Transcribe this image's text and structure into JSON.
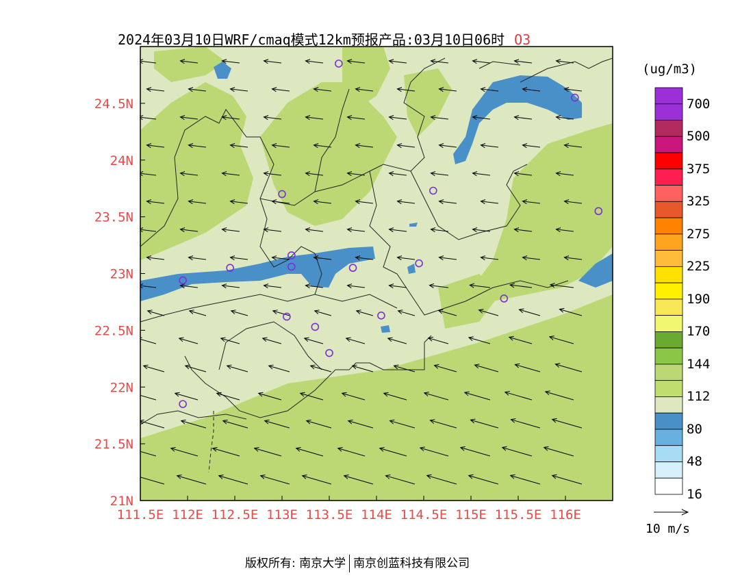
{
  "title": {
    "main": "2024年03月10日WRF/cmaq模式12km预报产品:03月10日06时",
    "pollutant": "O3"
  },
  "map": {
    "lon_ticks": [
      "111.5E",
      "112E",
      "112.5E",
      "113E",
      "113.5E",
      "114E",
      "114.5E",
      "115E",
      "115.5E",
      "116E"
    ],
    "lat_ticks": [
      "24.5N",
      "24N",
      "23.5N",
      "23N",
      "22.5N",
      "22N",
      "21.5N",
      "21N"
    ],
    "lon_range": [
      111.5,
      116.5
    ],
    "lat_range": [
      21,
      25
    ],
    "tick_color": "#e84a4a",
    "station_color": "#7b2fd6",
    "stations": [
      {
        "lon": 113.6,
        "lat": 24.85
      },
      {
        "lon": 116.1,
        "lat": 24.55
      },
      {
        "lon": 114.6,
        "lat": 23.73
      },
      {
        "lon": 113.0,
        "lat": 23.7
      },
      {
        "lon": 116.35,
        "lat": 23.55
      },
      {
        "lon": 113.1,
        "lat": 23.16
      },
      {
        "lon": 112.45,
        "lat": 23.05
      },
      {
        "lon": 113.1,
        "lat": 23.06
      },
      {
        "lon": 113.75,
        "lat": 23.05
      },
      {
        "lon": 114.45,
        "lat": 23.09
      },
      {
        "lon": 111.95,
        "lat": 22.94
      },
      {
        "lon": 115.35,
        "lat": 22.78
      },
      {
        "lon": 113.05,
        "lat": 22.62
      },
      {
        "lon": 114.05,
        "lat": 22.63
      },
      {
        "lon": 113.35,
        "lat": 22.53
      },
      {
        "lon": 113.5,
        "lat": 22.3
      },
      {
        "lon": 111.95,
        "lat": 21.85
      }
    ]
  },
  "colorbar": {
    "unit": "(ug/m3)",
    "labels": [
      "700",
      "500",
      "375",
      "325",
      "275",
      "225",
      "190",
      "170",
      "144",
      "112",
      "80",
      "48",
      "16"
    ],
    "colors": [
      "#9b30d8",
      "#9b30d8",
      "#b22a5e",
      "#c8167a",
      "#ff0000",
      "#ff1e50",
      "#ff6060",
      "#e8582a",
      "#ff8200",
      "#ffa41e",
      "#ffbc3a",
      "#ffe100",
      "#fff000",
      "#f8e858",
      "#f0f870",
      "#6aaa30",
      "#8cc646",
      "#bcd874",
      "#c0de70",
      "#dde8c0",
      "#4a90c8",
      "#68b0e0",
      "#a8dcf4",
      "#d8f0fb",
      "#ffffff"
    ]
  },
  "vector_key": {
    "label": "10 m/s"
  },
  "footer": {
    "left": "版权所有: 南京大学",
    "right": "南京创蓝科技有限公司"
  },
  "fills": {
    "light": "#dde8c0",
    "green": "#bcd874",
    "blue": "#4a90c8"
  }
}
